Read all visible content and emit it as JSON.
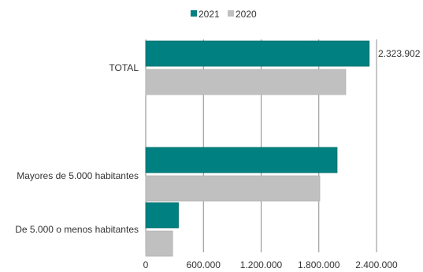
{
  "chart_data": {
    "type": "bar",
    "orientation": "horizontal",
    "categories": [
      "TOTAL",
      "Mayores de 5.000 habitantes",
      "De 5.000 o menos habitantes"
    ],
    "series": [
      {
        "name": "2021",
        "color": "#008080",
        "values": [
          2323902,
          1990000,
          340000
        ]
      },
      {
        "name": "2020",
        "color": "#c0c0c0",
        "values": [
          2080000,
          1810000,
          280000
        ]
      }
    ],
    "xlim": [
      0,
      2400000
    ],
    "x_ticks": [
      0,
      600000,
      1200000,
      1800000,
      2400000
    ],
    "x_tick_labels": [
      "0",
      "600.000",
      "1.200.000",
      "1.800.000",
      "2.400.000"
    ],
    "data_labels": [
      {
        "category": "TOTAL",
        "series": "2021",
        "text": "2.323.902"
      }
    ],
    "grid": true,
    "legend_position": "top-center"
  }
}
